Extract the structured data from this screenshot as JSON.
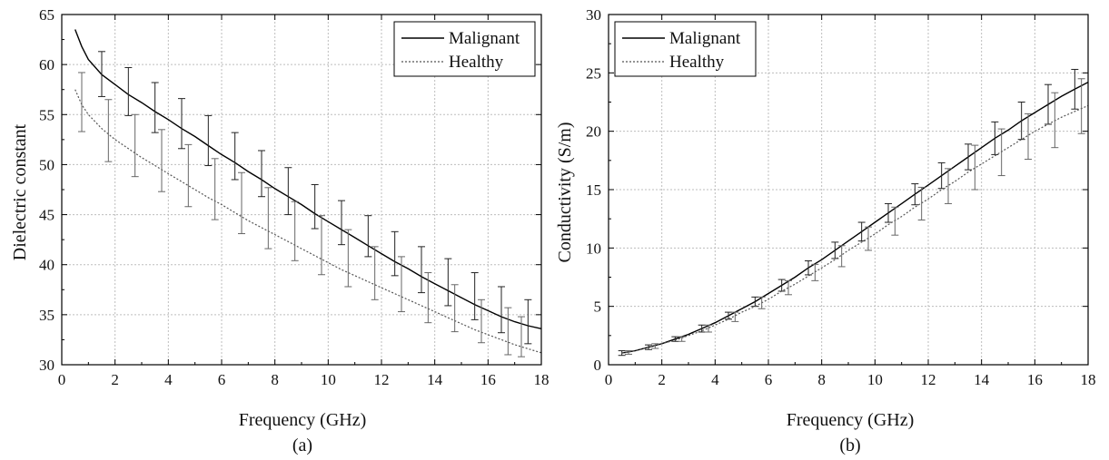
{
  "chart_data": [
    {
      "type": "line",
      "caption": "(a)",
      "xlabel": "Frequency (GHz)",
      "ylabel": "Dielectric constant",
      "xlim": [
        0,
        18
      ],
      "ylim": [
        30,
        65
      ],
      "xticks": [
        0,
        2,
        4,
        6,
        8,
        10,
        12,
        14,
        16,
        18
      ],
      "yticks": [
        30,
        35,
        40,
        45,
        50,
        55,
        60,
        65
      ],
      "grid": true,
      "legend_position": "top-right",
      "series": [
        {
          "name": "Malignant",
          "style": "solid",
          "color": "#000000",
          "x": [
            0.5,
            0.75,
            1.0,
            1.5,
            2.0,
            2.5,
            3.0,
            3.5,
            4.0,
            4.5,
            5.0,
            5.5,
            6.0,
            6.5,
            7.0,
            7.5,
            8.0,
            8.5,
            9.0,
            9.5,
            10.0,
            10.5,
            11.0,
            11.5,
            12.0,
            12.5,
            13.0,
            13.5,
            14.0,
            14.5,
            15.0,
            15.5,
            16.0,
            16.5,
            17.0,
            17.5,
            18.0
          ],
          "y": [
            63.5,
            61.8,
            60.5,
            59.0,
            58.0,
            57.0,
            56.2,
            55.3,
            54.5,
            53.6,
            52.8,
            51.9,
            51.0,
            50.2,
            49.3,
            48.5,
            47.6,
            46.8,
            46.0,
            45.1,
            44.3,
            43.5,
            42.7,
            41.9,
            41.1,
            40.3,
            39.6,
            38.8,
            38.1,
            37.4,
            36.7,
            36.0,
            35.4,
            34.8,
            34.3,
            33.9,
            33.6
          ],
          "error_bars": {
            "x": [
              1.5,
              2.5,
              3.5,
              4.5,
              5.5,
              6.5,
              7.5,
              8.5,
              9.5,
              10.5,
              11.5,
              12.5,
              13.5,
              14.5,
              15.5,
              16.5,
              17.5
            ],
            "y": [
              59.0,
              57.0,
              55.3,
              53.6,
              51.9,
              50.2,
              48.5,
              46.8,
              45.1,
              43.5,
              41.9,
              40.3,
              38.8,
              37.4,
              36.0,
              34.8,
              33.9
            ],
            "upper": [
              61.3,
              59.7,
              58.2,
              56.6,
              54.9,
              53.2,
              51.4,
              49.7,
              48.0,
              46.4,
              44.9,
              43.3,
              41.8,
              40.6,
              39.2,
              37.8,
              36.5
            ],
            "lower": [
              56.8,
              54.9,
              53.2,
              51.6,
              49.9,
              48.5,
              46.8,
              45.0,
              43.6,
              42.0,
              40.8,
              38.9,
              37.2,
              35.9,
              34.5,
              33.2,
              32.1
            ]
          }
        },
        {
          "name": "Healthy",
          "style": "dotted",
          "color": "#555555",
          "x": [
            0.5,
            0.75,
            1.0,
            1.5,
            2.0,
            2.5,
            3.0,
            3.5,
            4.0,
            4.5,
            5.0,
            5.5,
            6.0,
            6.5,
            7.0,
            7.5,
            8.0,
            8.5,
            9.0,
            9.5,
            10.0,
            10.5,
            11.0,
            11.5,
            12.0,
            12.5,
            13.0,
            13.5,
            14.0,
            14.5,
            15.0,
            15.5,
            16.0,
            16.5,
            17.0,
            17.5,
            18.0
          ],
          "y": [
            57.5,
            56.0,
            55.0,
            53.6,
            52.5,
            51.6,
            50.7,
            49.9,
            49.1,
            48.3,
            47.5,
            46.7,
            46.0,
            45.2,
            44.4,
            43.7,
            43.0,
            42.3,
            41.6,
            40.9,
            40.2,
            39.5,
            38.9,
            38.3,
            37.7,
            37.1,
            36.5,
            35.9,
            35.3,
            34.7,
            34.1,
            33.5,
            33.0,
            32.5,
            32.0,
            31.6,
            31.2
          ],
          "error_bars": {
            "x": [
              0.75,
              1.75,
              2.75,
              3.75,
              4.75,
              5.75,
              6.75,
              7.75,
              8.75,
              9.75,
              10.75,
              11.75,
              12.75,
              13.75,
              14.75,
              15.75,
              16.75,
              17.25
            ],
            "y": [
              56.0,
              53.2,
              50.8,
              49.5,
              47.8,
              46.4,
              45.0,
              43.6,
              42.0,
              40.6,
              39.2,
              38.0,
              36.8,
              35.6,
              34.4,
              33.2,
              32.3,
              31.8
            ],
            "upper": [
              59.2,
              56.5,
              55.0,
              53.5,
              52.0,
              50.6,
              49.2,
              47.7,
              46.3,
              44.9,
              43.5,
              41.8,
              40.8,
              39.2,
              38.0,
              36.5,
              35.7,
              34.8
            ],
            "lower": [
              53.3,
              50.3,
              48.8,
              47.3,
              45.8,
              44.5,
              43.1,
              41.6,
              40.4,
              39.0,
              37.8,
              36.5,
              35.3,
              34.2,
              33.3,
              32.2,
              31.0,
              30.8
            ]
          }
        }
      ]
    },
    {
      "type": "line",
      "caption": "(b)",
      "xlabel": "Frequency (GHz)",
      "ylabel": "Conductivity (S/m)",
      "xlim": [
        0,
        18
      ],
      "ylim": [
        0,
        30
      ],
      "xticks": [
        0,
        2,
        4,
        6,
        8,
        10,
        12,
        14,
        16,
        18
      ],
      "yticks": [
        0,
        5,
        10,
        15,
        20,
        25,
        30
      ],
      "grid": true,
      "legend_position": "top-left",
      "series": [
        {
          "name": "Malignant",
          "style": "solid",
          "color": "#000000",
          "x": [
            0.5,
            1.0,
            1.5,
            2.0,
            2.5,
            3.0,
            3.5,
            4.0,
            4.5,
            5.0,
            5.5,
            6.0,
            6.5,
            7.0,
            7.5,
            8.0,
            8.5,
            9.0,
            9.5,
            10.0,
            10.5,
            11.0,
            11.5,
            12.0,
            12.5,
            13.0,
            13.5,
            14.0,
            14.5,
            15.0,
            15.5,
            16.0,
            16.5,
            17.0,
            17.5,
            18.0
          ],
          "y": [
            1.0,
            1.2,
            1.5,
            1.8,
            2.2,
            2.6,
            3.1,
            3.6,
            4.2,
            4.8,
            5.4,
            6.1,
            6.8,
            7.5,
            8.3,
            9.0,
            9.8,
            10.6,
            11.4,
            12.2,
            13.0,
            13.8,
            14.6,
            15.4,
            16.2,
            17.0,
            17.8,
            18.6,
            19.4,
            20.1,
            20.9,
            21.6,
            22.3,
            23.0,
            23.6,
            24.2
          ],
          "error_bars": {
            "x": [
              0.5,
              1.5,
              2.5,
              3.5,
              4.5,
              5.5,
              6.5,
              7.5,
              8.5,
              9.5,
              10.5,
              11.5,
              12.5,
              13.5,
              14.5,
              15.5,
              16.5,
              17.5
            ],
            "y": [
              1.0,
              1.5,
              2.2,
              3.1,
              4.2,
              5.4,
              6.8,
              8.3,
              9.8,
              11.4,
              13.0,
              14.6,
              16.2,
              17.8,
              19.4,
              20.9,
              22.3,
              23.6
            ],
            "upper": [
              1.2,
              1.7,
              2.4,
              3.4,
              4.5,
              5.8,
              7.3,
              8.9,
              10.5,
              12.2,
              13.8,
              15.5,
              17.3,
              18.9,
              20.8,
              22.5,
              24.0,
              25.3
            ],
            "lower": [
              0.8,
              1.3,
              2.0,
              2.8,
              3.9,
              5.0,
              6.3,
              7.7,
              9.1,
              10.6,
              12.2,
              13.7,
              15.1,
              16.7,
              18.0,
              19.3,
              20.6,
              21.9
            ]
          }
        },
        {
          "name": "Healthy",
          "style": "dotted",
          "color": "#555555",
          "x": [
            0.5,
            1.0,
            1.5,
            2.0,
            2.5,
            3.0,
            3.5,
            4.0,
            4.5,
            5.0,
            5.5,
            6.0,
            6.5,
            7.0,
            7.5,
            8.0,
            8.5,
            9.0,
            9.5,
            10.0,
            10.5,
            11.0,
            11.5,
            12.0,
            12.5,
            13.0,
            13.5,
            14.0,
            14.5,
            15.0,
            15.5,
            16.0,
            16.5,
            17.0,
            17.5,
            18.0
          ],
          "y": [
            1.0,
            1.2,
            1.5,
            1.8,
            2.1,
            2.5,
            2.9,
            3.4,
            3.9,
            4.5,
            5.0,
            5.6,
            6.3,
            6.9,
            7.6,
            8.3,
            9.0,
            9.8,
            10.5,
            11.2,
            12.0,
            12.7,
            13.5,
            14.2,
            15.0,
            15.7,
            16.5,
            17.2,
            17.9,
            18.6,
            19.3,
            20.0,
            20.6,
            21.2,
            21.7,
            22.2
          ],
          "error_bars": {
            "x": [
              0.75,
              1.75,
              2.75,
              3.75,
              4.75,
              5.75,
              6.75,
              7.75,
              8.75,
              9.75,
              10.75,
              11.75,
              12.75,
              13.75,
              14.75,
              15.75,
              16.75,
              17.75
            ],
            "y": [
              1.1,
              1.6,
              2.2,
              3.1,
              4.1,
              5.3,
              6.6,
              7.9,
              9.3,
              10.8,
              12.3,
              13.8,
              15.3,
              16.8,
              18.2,
              19.6,
              20.9,
              22.0
            ],
            "upper": [
              1.2,
              1.8,
              2.4,
              3.4,
              4.5,
              5.8,
              7.2,
              8.6,
              10.2,
              11.8,
              13.5,
              15.2,
              16.8,
              18.8,
              20.2,
              21.5,
              23.3,
              24.5
            ],
            "lower": [
              0.9,
              1.4,
              2.0,
              2.8,
              3.7,
              4.8,
              6.0,
              7.2,
              8.4,
              9.8,
              11.1,
              12.4,
              13.8,
              15.0,
              16.2,
              17.6,
              18.6,
              19.8
            ]
          }
        }
      ]
    }
  ]
}
